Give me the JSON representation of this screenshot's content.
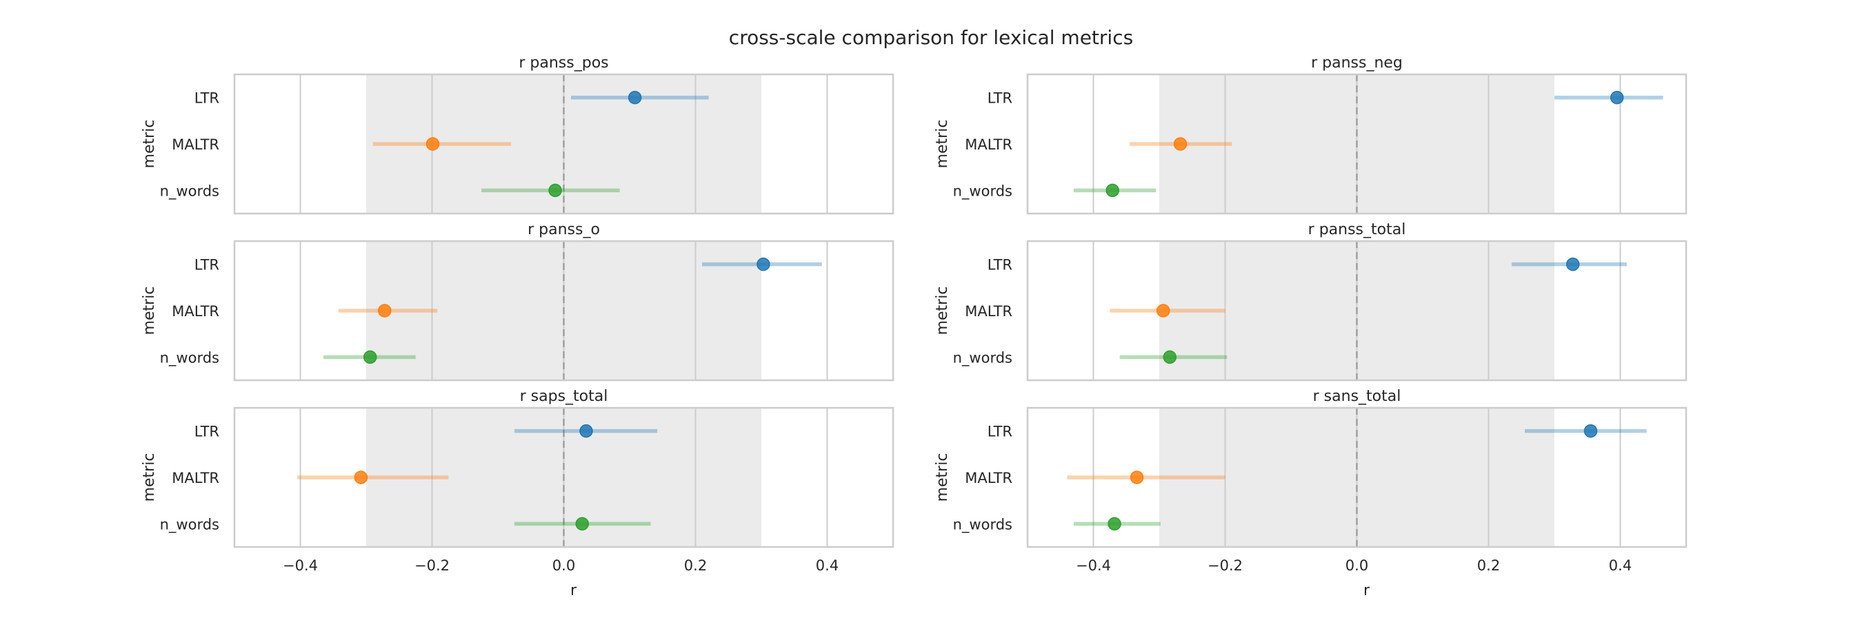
{
  "figure": {
    "title": "cross-scale comparison for lexical metrics"
  },
  "style": {
    "series_colors": [
      "#1f77b4",
      "#ff7f0e",
      "#2ca02c"
    ],
    "band_color": "#ebebeb",
    "grid_color": "#cccccc",
    "frame_color": "#cccccc",
    "zero_line_color": "#9e9e9e",
    "text_color": "#262626"
  },
  "chart_data": [
    {
      "type": "errorbar",
      "title": "r panss_pos",
      "xlabel": "",
      "ylabel": "metric",
      "categories": [
        "LTR",
        "MALTR",
        "n_words"
      ],
      "values": [
        0.108,
        -0.199,
        -0.013
      ],
      "ci": [
        [
          0.011,
          0.22
        ],
        [
          -0.29,
          -0.08
        ],
        [
          -0.125,
          0.085
        ]
      ],
      "xlim": [
        -0.5,
        0.5
      ],
      "xticks": [
        "−0.4",
        "−0.2",
        "0.0",
        "0.2",
        "0.4"
      ],
      "show_xticks": false,
      "band": [
        -0.3,
        0.3
      ],
      "reference_line": 0.0,
      "grid": true
    },
    {
      "type": "errorbar",
      "title": "r panss_neg",
      "xlabel": "",
      "ylabel": "metric",
      "categories": [
        "LTR",
        "MALTR",
        "n_words"
      ],
      "values": [
        0.395,
        -0.268,
        -0.371
      ],
      "ci": [
        [
          0.3,
          0.465
        ],
        [
          -0.345,
          -0.19
        ],
        [
          -0.43,
          -0.305
        ]
      ],
      "xlim": [
        -0.5,
        0.5
      ],
      "xticks": [
        "−0.4",
        "−0.2",
        "0.0",
        "0.2",
        "0.4"
      ],
      "show_xticks": false,
      "band": [
        -0.3,
        0.3
      ],
      "reference_line": 0.0,
      "grid": true
    },
    {
      "type": "errorbar",
      "title": "r panss_o",
      "xlabel": "",
      "ylabel": "metric",
      "categories": [
        "LTR",
        "MALTR",
        "n_words"
      ],
      "values": [
        0.303,
        -0.272,
        -0.294
      ],
      "ci": [
        [
          0.21,
          0.392
        ],
        [
          -0.342,
          -0.192
        ],
        [
          -0.365,
          -0.225
        ]
      ],
      "xlim": [
        -0.5,
        0.5
      ],
      "xticks": [
        "−0.4",
        "−0.2",
        "0.0",
        "0.2",
        "0.4"
      ],
      "show_xticks": false,
      "band": [
        -0.3,
        0.3
      ],
      "reference_line": 0.0,
      "grid": true
    },
    {
      "type": "errorbar",
      "title": "r panss_total",
      "xlabel": "",
      "ylabel": "metric",
      "categories": [
        "LTR",
        "MALTR",
        "n_words"
      ],
      "values": [
        0.328,
        -0.294,
        -0.284
      ],
      "ci": [
        [
          0.235,
          0.41
        ],
        [
          -0.375,
          -0.2
        ],
        [
          -0.36,
          -0.197
        ]
      ],
      "xlim": [
        -0.5,
        0.5
      ],
      "xticks": [
        "−0.4",
        "−0.2",
        "0.0",
        "0.2",
        "0.4"
      ],
      "show_xticks": false,
      "band": [
        -0.3,
        0.3
      ],
      "reference_line": 0.0,
      "grid": true
    },
    {
      "type": "errorbar",
      "title": "r saps_total",
      "xlabel": "r",
      "ylabel": "metric",
      "categories": [
        "LTR",
        "MALTR",
        "n_words"
      ],
      "values": [
        0.034,
        -0.308,
        0.028
      ],
      "ci": [
        [
          -0.075,
          0.142
        ],
        [
          -0.405,
          -0.175
        ],
        [
          -0.075,
          0.132
        ]
      ],
      "xlim": [
        -0.5,
        0.5
      ],
      "xticks": [
        "−0.4",
        "−0.2",
        "0.0",
        "0.2",
        "0.4"
      ],
      "show_xticks": true,
      "band": [
        -0.3,
        0.3
      ],
      "reference_line": 0.0,
      "grid": true
    },
    {
      "type": "errorbar",
      "title": "r sans_total",
      "xlabel": "r",
      "ylabel": "metric",
      "categories": [
        "LTR",
        "MALTR",
        "n_words"
      ],
      "values": [
        0.355,
        -0.334,
        -0.368
      ],
      "ci": [
        [
          0.255,
          0.44
        ],
        [
          -0.44,
          -0.2
        ],
        [
          -0.43,
          -0.298
        ]
      ],
      "xlim": [
        -0.5,
        0.5
      ],
      "xticks": [
        "−0.4",
        "−0.2",
        "0.0",
        "0.2",
        "0.4"
      ],
      "show_xticks": true,
      "band": [
        -0.3,
        0.3
      ],
      "reference_line": 0.0,
      "grid": true
    }
  ]
}
